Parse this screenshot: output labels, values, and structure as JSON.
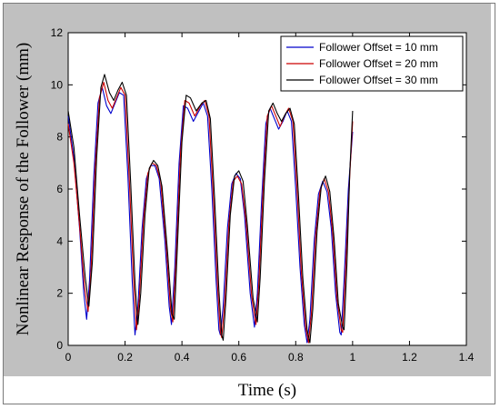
{
  "chart_data": {
    "type": "line",
    "title": "",
    "xlabel": "Time (s)",
    "ylabel": "Nonlinear Response of the Follower (mm)",
    "xlim": [
      0,
      1.4
    ],
    "ylim": [
      0,
      12
    ],
    "xticks": [
      0,
      0.2,
      0.4,
      0.6,
      0.8,
      1,
      1.2,
      1.4
    ],
    "yticks": [
      0,
      2,
      4,
      6,
      8,
      10,
      12
    ],
    "xtick_labels": [
      "0",
      "0.2",
      "0.4",
      "0.6",
      "0.8",
      "1",
      "1.2",
      "1.4"
    ],
    "ytick_labels": [
      "0",
      "2",
      "4",
      "6",
      "8",
      "10",
      "12"
    ],
    "grid": false,
    "legend_position": "top-right",
    "series": [
      {
        "name": "Follower Offset = 10 mm",
        "color": "#0000cc",
        "points": [
          [
            0,
            8.8
          ],
          [
            0.02,
            7.2
          ],
          [
            0.04,
            4.5
          ],
          [
            0.055,
            2.0
          ],
          [
            0.065,
            1.0
          ],
          [
            0.075,
            2.5
          ],
          [
            0.09,
            6.5
          ],
          [
            0.105,
            9.3
          ],
          [
            0.12,
            9.9
          ],
          [
            0.135,
            9.2
          ],
          [
            0.15,
            8.9
          ],
          [
            0.165,
            9.3
          ],
          [
            0.18,
            9.7
          ],
          [
            0.195,
            9.6
          ],
          [
            0.21,
            6.5
          ],
          [
            0.225,
            2.5
          ],
          [
            0.235,
            0.4
          ],
          [
            0.245,
            1.5
          ],
          [
            0.26,
            4.5
          ],
          [
            0.275,
            6.4
          ],
          [
            0.29,
            6.9
          ],
          [
            0.305,
            6.9
          ],
          [
            0.32,
            6.4
          ],
          [
            0.34,
            4.0
          ],
          [
            0.355,
            1.5
          ],
          [
            0.363,
            0.8
          ],
          [
            0.375,
            3.0
          ],
          [
            0.39,
            7.0
          ],
          [
            0.405,
            9.2
          ],
          [
            0.42,
            9.1
          ],
          [
            0.44,
            8.6
          ],
          [
            0.46,
            9.0
          ],
          [
            0.475,
            9.3
          ],
          [
            0.49,
            8.8
          ],
          [
            0.505,
            6.0
          ],
          [
            0.52,
            2.5
          ],
          [
            0.53,
            0.6
          ],
          [
            0.535,
            0.4
          ],
          [
            0.545,
            1.5
          ],
          [
            0.56,
            4.5
          ],
          [
            0.575,
            6.2
          ],
          [
            0.59,
            6.6
          ],
          [
            0.605,
            6.4
          ],
          [
            0.62,
            5.0
          ],
          [
            0.64,
            2.0
          ],
          [
            0.655,
            0.7
          ],
          [
            0.665,
            2.0
          ],
          [
            0.68,
            5.5
          ],
          [
            0.695,
            8.5
          ],
          [
            0.71,
            9.1
          ],
          [
            0.725,
            8.7
          ],
          [
            0.74,
            8.3
          ],
          [
            0.755,
            8.6
          ],
          [
            0.77,
            9.0
          ],
          [
            0.785,
            8.6
          ],
          [
            0.8,
            6.0
          ],
          [
            0.815,
            3.0
          ],
          [
            0.83,
            0.8
          ],
          [
            0.84,
            0.1
          ],
          [
            0.85,
            1.0
          ],
          [
            0.865,
            4.0
          ],
          [
            0.88,
            5.8
          ],
          [
            0.895,
            6.3
          ],
          [
            0.91,
            5.9
          ],
          [
            0.925,
            4.5
          ],
          [
            0.94,
            2.0
          ],
          [
            0.955,
            0.5
          ],
          [
            0.96,
            0.4
          ],
          [
            0.97,
            2.5
          ],
          [
            0.985,
            6.0
          ],
          [
            1.0,
            8.2
          ]
        ]
      },
      {
        "name": "Follower Offset = 20 mm",
        "color": "#cc0000",
        "points": [
          [
            0,
            8.5
          ],
          [
            0.02,
            7.0
          ],
          [
            0.04,
            4.6
          ],
          [
            0.058,
            2.2
          ],
          [
            0.07,
            1.3
          ],
          [
            0.08,
            2.8
          ],
          [
            0.095,
            6.8
          ],
          [
            0.11,
            9.5
          ],
          [
            0.125,
            10.1
          ],
          [
            0.14,
            9.4
          ],
          [
            0.155,
            9.1
          ],
          [
            0.17,
            9.5
          ],
          [
            0.185,
            9.9
          ],
          [
            0.2,
            9.6
          ],
          [
            0.215,
            6.3
          ],
          [
            0.23,
            2.5
          ],
          [
            0.24,
            0.6
          ],
          [
            0.25,
            1.8
          ],
          [
            0.265,
            4.8
          ],
          [
            0.28,
            6.6
          ],
          [
            0.295,
            7.0
          ],
          [
            0.31,
            6.9
          ],
          [
            0.325,
            6.3
          ],
          [
            0.345,
            3.8
          ],
          [
            0.36,
            1.4
          ],
          [
            0.368,
            0.9
          ],
          [
            0.38,
            3.5
          ],
          [
            0.395,
            7.4
          ],
          [
            0.41,
            9.4
          ],
          [
            0.425,
            9.3
          ],
          [
            0.445,
            8.8
          ],
          [
            0.465,
            9.2
          ],
          [
            0.48,
            9.4
          ],
          [
            0.495,
            8.8
          ],
          [
            0.51,
            5.8
          ],
          [
            0.525,
            2.3
          ],
          [
            0.535,
            0.5
          ],
          [
            0.54,
            0.3
          ],
          [
            0.55,
            1.6
          ],
          [
            0.565,
            4.7
          ],
          [
            0.58,
            6.3
          ],
          [
            0.595,
            6.5
          ],
          [
            0.61,
            6.2
          ],
          [
            0.625,
            4.8
          ],
          [
            0.645,
            1.9
          ],
          [
            0.66,
            0.8
          ],
          [
            0.67,
            2.3
          ],
          [
            0.685,
            5.9
          ],
          [
            0.7,
            8.8
          ],
          [
            0.715,
            9.2
          ],
          [
            0.73,
            8.8
          ],
          [
            0.745,
            8.4
          ],
          [
            0.76,
            8.8
          ],
          [
            0.775,
            9.1
          ],
          [
            0.79,
            8.6
          ],
          [
            0.805,
            5.9
          ],
          [
            0.82,
            2.8
          ],
          [
            0.835,
            0.7
          ],
          [
            0.845,
            0.1
          ],
          [
            0.855,
            1.2
          ],
          [
            0.87,
            4.2
          ],
          [
            0.885,
            5.9
          ],
          [
            0.9,
            6.4
          ],
          [
            0.915,
            5.9
          ],
          [
            0.93,
            4.3
          ],
          [
            0.945,
            1.8
          ],
          [
            0.96,
            0.6
          ],
          [
            0.965,
            0.5
          ],
          [
            0.975,
            2.8
          ],
          [
            0.99,
            6.5
          ],
          [
            1.0,
            8.6
          ]
        ]
      },
      {
        "name": "Follower Offset = 30 mm",
        "color": "#000000",
        "points": [
          [
            0,
            9.0
          ],
          [
            0.02,
            7.6
          ],
          [
            0.04,
            5.0
          ],
          [
            0.06,
            2.6
          ],
          [
            0.073,
            1.5
          ],
          [
            0.085,
            3.2
          ],
          [
            0.1,
            7.2
          ],
          [
            0.115,
            9.9
          ],
          [
            0.128,
            10.4
          ],
          [
            0.145,
            9.7
          ],
          [
            0.16,
            9.4
          ],
          [
            0.175,
            9.8
          ],
          [
            0.19,
            10.1
          ],
          [
            0.205,
            9.6
          ],
          [
            0.22,
            6.2
          ],
          [
            0.235,
            2.4
          ],
          [
            0.245,
            0.8
          ],
          [
            0.255,
            2.0
          ],
          [
            0.27,
            5.0
          ],
          [
            0.285,
            6.8
          ],
          [
            0.3,
            7.1
          ],
          [
            0.315,
            6.9
          ],
          [
            0.33,
            6.1
          ],
          [
            0.35,
            3.5
          ],
          [
            0.365,
            1.2
          ],
          [
            0.373,
            1.0
          ],
          [
            0.385,
            4.0
          ],
          [
            0.4,
            7.8
          ],
          [
            0.415,
            9.6
          ],
          [
            0.43,
            9.5
          ],
          [
            0.45,
            9.0
          ],
          [
            0.47,
            9.3
          ],
          [
            0.485,
            9.4
          ],
          [
            0.5,
            8.7
          ],
          [
            0.515,
            5.6
          ],
          [
            0.53,
            2.1
          ],
          [
            0.54,
            0.4
          ],
          [
            0.545,
            0.2
          ],
          [
            0.555,
            1.8
          ],
          [
            0.57,
            5.0
          ],
          [
            0.585,
            6.5
          ],
          [
            0.6,
            6.7
          ],
          [
            0.615,
            6.3
          ],
          [
            0.63,
            4.6
          ],
          [
            0.65,
            1.8
          ],
          [
            0.665,
            0.9
          ],
          [
            0.675,
            2.6
          ],
          [
            0.69,
            6.3
          ],
          [
            0.705,
            9.0
          ],
          [
            0.72,
            9.3
          ],
          [
            0.735,
            8.9
          ],
          [
            0.75,
            8.6
          ],
          [
            0.765,
            8.9
          ],
          [
            0.78,
            9.1
          ],
          [
            0.795,
            8.5
          ],
          [
            0.81,
            5.7
          ],
          [
            0.825,
            2.6
          ],
          [
            0.84,
            0.6
          ],
          [
            0.85,
            0.1
          ],
          [
            0.86,
            1.4
          ],
          [
            0.875,
            4.4
          ],
          [
            0.89,
            6.1
          ],
          [
            0.905,
            6.5
          ],
          [
            0.92,
            5.9
          ],
          [
            0.935,
            4.1
          ],
          [
            0.95,
            1.6
          ],
          [
            0.965,
            0.7
          ],
          [
            0.97,
            0.6
          ],
          [
            0.98,
            3.1
          ],
          [
            0.99,
            6.6
          ],
          [
            1.0,
            9.0
          ]
        ]
      }
    ]
  }
}
